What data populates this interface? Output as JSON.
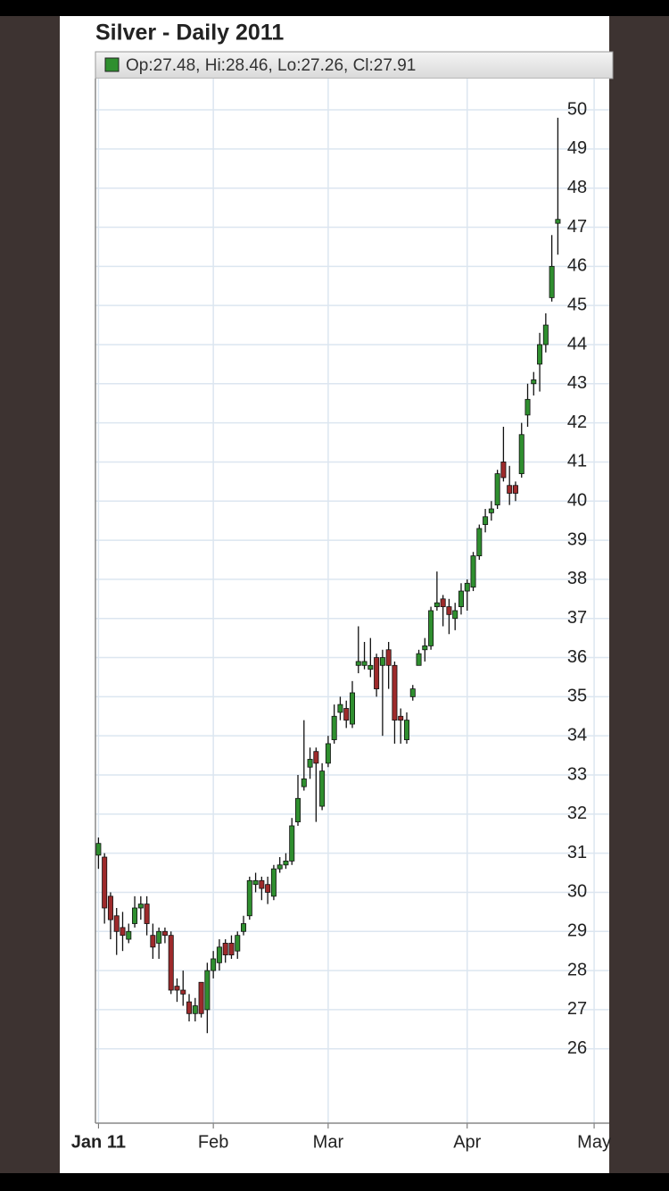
{
  "chart_data": {
    "type": "candlestick",
    "title": "Silver - Daily 2011",
    "legend": "Op:27.48, Hi:28.46, Lo:27.26, Cl:27.91",
    "up_color": "#2f8f2f",
    "down_color": "#9e2a2b",
    "open": [
      30.95,
      30.9,
      29.9,
      29.4,
      29.1,
      28.8,
      29.2,
      29.6,
      29.7,
      28.9,
      28.7,
      29.0,
      28.9,
      27.6,
      27.5,
      27.2,
      26.9,
      27.7,
      27.0,
      28.0,
      28.2,
      28.7,
      28.7,
      28.5,
      29.0,
      29.4,
      30.2,
      30.3,
      30.2,
      29.9,
      30.6,
      30.7,
      30.8,
      31.8,
      32.7,
      33.2,
      33.6,
      32.2,
      33.3,
      33.9,
      34.6,
      34.7,
      34.3,
      35.8,
      35.8,
      35.7,
      36.0,
      35.8,
      36.2,
      35.8,
      34.5,
      33.9,
      35.0,
      35.8,
      36.2,
      36.3,
      37.3,
      37.5,
      37.3,
      37.0,
      37.3,
      37.7,
      37.8,
      38.6,
      39.4,
      39.7,
      39.9,
      41.0,
      40.4,
      40.4,
      40.7,
      42.2,
      43.0,
      43.5,
      44.0,
      45.2,
      47.1
    ],
    "high": [
      31.4,
      31.0,
      30.0,
      29.6,
      29.5,
      29.2,
      29.9,
      29.9,
      29.9,
      29.2,
      29.1,
      29.1,
      29.0,
      27.8,
      28.0,
      27.4,
      27.3,
      27.7,
      28.2,
      28.5,
      28.8,
      28.8,
      28.9,
      29.0,
      29.4,
      30.4,
      30.5,
      30.4,
      30.4,
      30.7,
      30.9,
      31.0,
      31.9,
      33.0,
      34.4,
      33.7,
      33.7,
      33.3,
      34.0,
      34.8,
      35.0,
      34.9,
      35.4,
      36.8,
      36.4,
      36.5,
      36.1,
      36.2,
      36.4,
      35.9,
      34.7,
      34.6,
      35.3,
      36.2,
      36.5,
      37.3,
      38.2,
      37.6,
      37.5,
      37.4,
      37.9,
      38.0,
      38.7,
      39.4,
      39.8,
      40.0,
      40.8,
      41.9,
      40.9,
      40.5,
      42.0,
      43.0,
      43.3,
      44.3,
      44.8,
      46.8,
      49.8
    ],
    "low": [
      30.6,
      29.2,
      28.8,
      28.4,
      28.5,
      28.7,
      29.1,
      29.3,
      28.9,
      28.3,
      28.3,
      28.7,
      27.4,
      27.2,
      27.1,
      26.7,
      26.7,
      26.8,
      26.4,
      27.8,
      28.0,
      28.2,
      28.3,
      28.3,
      28.9,
      29.3,
      30.0,
      29.8,
      29.7,
      29.8,
      30.5,
      30.6,
      30.7,
      31.7,
      32.6,
      32.9,
      31.8,
      32.1,
      33.2,
      33.8,
      34.4,
      34.2,
      34.2,
      35.6,
      35.7,
      35.5,
      35.0,
      34.0,
      35.2,
      33.8,
      33.8,
      33.8,
      34.9,
      35.8,
      35.9,
      36.2,
      37.2,
      36.8,
      36.6,
      36.7,
      37.1,
      37.2,
      37.7,
      38.5,
      39.2,
      39.5,
      39.8,
      40.5,
      39.9,
      40.0,
      40.6,
      41.9,
      42.7,
      42.8,
      43.8,
      45.1,
      46.3
    ],
    "close": [
      31.25,
      29.6,
      29.3,
      29.0,
      28.9,
      29.0,
      29.6,
      29.7,
      29.2,
      28.6,
      29.0,
      28.9,
      27.5,
      27.5,
      27.4,
      26.9,
      27.1,
      26.9,
      28.0,
      28.3,
      28.6,
      28.4,
      28.4,
      28.9,
      29.2,
      30.3,
      30.3,
      30.1,
      30.0,
      30.6,
      30.7,
      30.8,
      31.7,
      32.4,
      32.9,
      33.4,
      33.3,
      33.1,
      33.8,
      34.5,
      34.8,
      34.4,
      35.1,
      35.9,
      35.9,
      35.8,
      35.2,
      36.0,
      35.8,
      34.4,
      34.4,
      34.4,
      35.2,
      36.1,
      36.3,
      37.2,
      37.4,
      37.3,
      37.1,
      37.2,
      37.7,
      37.9,
      38.6,
      39.3,
      39.6,
      39.8,
      40.7,
      40.6,
      40.2,
      40.2,
      41.7,
      42.6,
      43.1,
      44.0,
      44.5,
      46.0,
      47.2
    ],
    "xlim": [
      -0.5,
      84.5
    ],
    "xticks": [
      {
        "value": 0,
        "label": "Jan 11"
      },
      {
        "value": 19,
        "label": "Feb"
      },
      {
        "value": 38,
        "label": "Mar"
      },
      {
        "value": 61,
        "label": "Apr"
      },
      {
        "value": 82,
        "label": "May"
      }
    ],
    "ylim": [
      24.1,
      50.8
    ],
    "yticks": [
      26,
      27,
      28,
      29,
      30,
      31,
      32,
      33,
      34,
      35,
      36,
      37,
      38,
      39,
      40,
      41,
      42,
      43,
      44,
      45,
      46,
      47,
      48,
      49,
      50
    ],
    "grid": true
  }
}
